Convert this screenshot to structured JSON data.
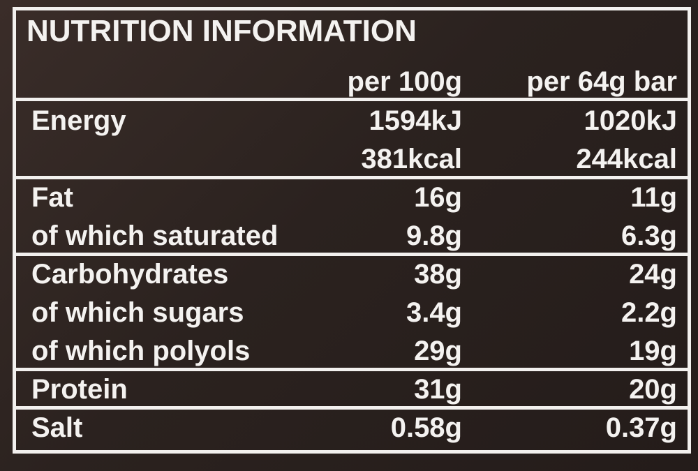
{
  "title": "NUTRITION INFORMATION",
  "columns": [
    "per 100g",
    "per 64g bar"
  ],
  "sections": [
    {
      "rows": [
        {
          "label": "Energy",
          "values": [
            "1594kJ",
            "1020kJ"
          ]
        },
        {
          "values": [
            "381kcal",
            "244kcal"
          ]
        }
      ]
    },
    {
      "rows": [
        {
          "label": "Fat",
          "values": [
            "16g",
            "11g"
          ]
        },
        {
          "label": "of which saturated",
          "values": [
            "9.8g",
            "6.3g"
          ]
        }
      ]
    },
    {
      "rows": [
        {
          "label": "Carbohydrates",
          "values": [
            "38g",
            "24g"
          ]
        },
        {
          "label": "of which sugars",
          "values": [
            "3.4g",
            "2.2g"
          ]
        },
        {
          "label": "of which polyols",
          "values": [
            "29g",
            "19g"
          ]
        }
      ]
    },
    {
      "rows": [
        {
          "label": "Protein",
          "values": [
            "31g",
            "20g"
          ]
        }
      ]
    },
    {
      "rows": [
        {
          "label": "Salt",
          "values": [
            "0.58g",
            "0.37g"
          ]
        }
      ]
    }
  ]
}
